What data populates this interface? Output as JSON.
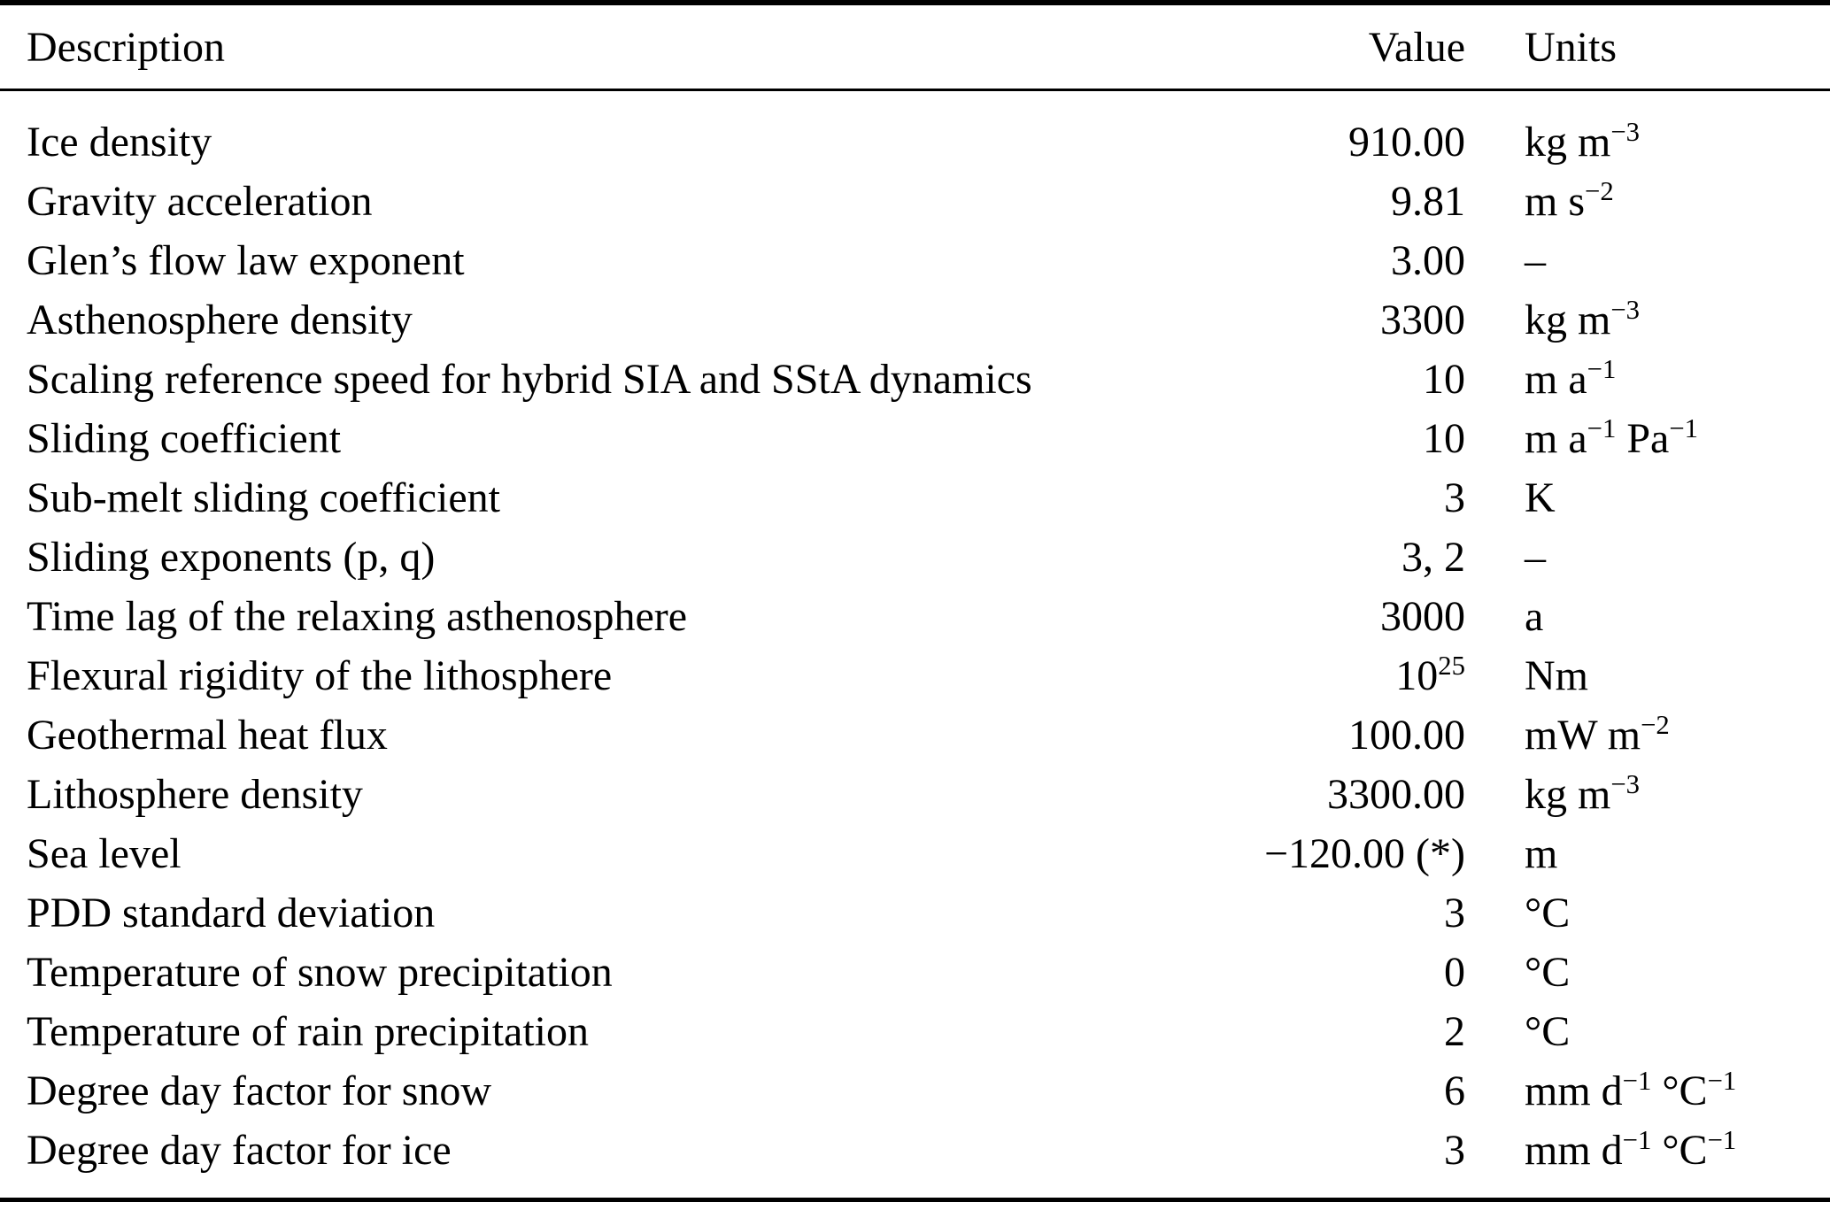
{
  "table": {
    "columns": [
      "Description",
      "Value",
      "Units"
    ],
    "footnote_marker": "(*)",
    "rows": [
      {
        "description": "Ice density",
        "value": [
          {
            "t": "910.00"
          }
        ],
        "units": [
          {
            "t": "kg m"
          },
          {
            "t": "−3",
            "sup": true
          }
        ]
      },
      {
        "description": "Gravity acceleration",
        "value": [
          {
            "t": "9.81"
          }
        ],
        "units": [
          {
            "t": "m s"
          },
          {
            "t": "−2",
            "sup": true
          }
        ]
      },
      {
        "description": "Glen’s flow law exponent",
        "value": [
          {
            "t": "3.00"
          }
        ],
        "units": [
          {
            "t": "–"
          }
        ]
      },
      {
        "description": "Asthenosphere density",
        "value": [
          {
            "t": "3300"
          }
        ],
        "units": [
          {
            "t": "kg m"
          },
          {
            "t": "−3",
            "sup": true
          }
        ]
      },
      {
        "description": "Scaling reference speed for hybrid SIA and SStA dynamics",
        "value": [
          {
            "t": "10"
          }
        ],
        "units": [
          {
            "t": "m a"
          },
          {
            "t": "−1",
            "sup": true
          }
        ]
      },
      {
        "description": "Sliding coefficient",
        "value": [
          {
            "t": "10"
          }
        ],
        "units": [
          {
            "t": "m a"
          },
          {
            "t": "−1",
            "sup": true
          },
          {
            "t": " Pa"
          },
          {
            "t": "−1",
            "sup": true
          }
        ]
      },
      {
        "description": "Sub-melt sliding coefficient",
        "value": [
          {
            "t": "3"
          }
        ],
        "units": [
          {
            "t": "K"
          }
        ]
      },
      {
        "description": "Sliding exponents (p, q)",
        "value": [
          {
            "t": "3, 2"
          }
        ],
        "units": [
          {
            "t": "–"
          }
        ]
      },
      {
        "description": "Time lag of the relaxing asthenosphere",
        "value": [
          {
            "t": "3000"
          }
        ],
        "units": [
          {
            "t": "a"
          }
        ]
      },
      {
        "description": "Flexural rigidity of the lithosphere",
        "value": [
          {
            "t": "10"
          },
          {
            "t": "25",
            "sup": true
          }
        ],
        "units": [
          {
            "t": "Nm"
          }
        ]
      },
      {
        "description": "Geothermal heat flux",
        "value": [
          {
            "t": "100.00"
          }
        ],
        "units": [
          {
            "t": "mW m"
          },
          {
            "t": "−2",
            "sup": true
          }
        ]
      },
      {
        "description": "Lithosphere density",
        "value": [
          {
            "t": "3300.00"
          }
        ],
        "units": [
          {
            "t": "kg m"
          },
          {
            "t": "−3",
            "sup": true
          }
        ]
      },
      {
        "description": "Sea level",
        "value": [
          {
            "t": "−120.00 (*)"
          }
        ],
        "units": [
          {
            "t": "m"
          }
        ]
      },
      {
        "description": "PDD standard deviation",
        "value": [
          {
            "t": "3"
          }
        ],
        "units": [
          {
            "t": "°C"
          }
        ]
      },
      {
        "description": "Temperature of snow precipitation",
        "value": [
          {
            "t": "0"
          }
        ],
        "units": [
          {
            "t": "°C"
          }
        ]
      },
      {
        "description": "Temperature of rain precipitation",
        "value": [
          {
            "t": "2"
          }
        ],
        "units": [
          {
            "t": "°C"
          }
        ]
      },
      {
        "description": "Degree day factor for snow",
        "value": [
          {
            "t": "6"
          }
        ],
        "units": [
          {
            "t": "mm d"
          },
          {
            "t": "−1",
            "sup": true
          },
          {
            "t": " °C"
          },
          {
            "t": "−1",
            "sup": true
          }
        ]
      },
      {
        "description": "Degree day factor for ice",
        "value": [
          {
            "t": "3"
          }
        ],
        "units": [
          {
            "t": "mm d"
          },
          {
            "t": "−1",
            "sup": true
          },
          {
            "t": " °C"
          },
          {
            "t": "−1",
            "sup": true
          }
        ]
      }
    ]
  }
}
